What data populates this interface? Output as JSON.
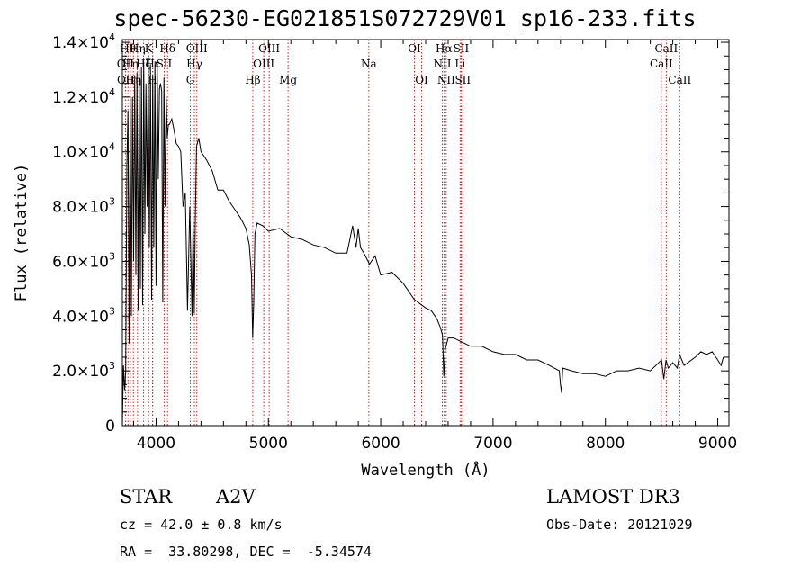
{
  "title": "spec-56230-EG021851S072729V01_sp16-233.fits",
  "info": {
    "class": "STAR",
    "subclass": "A2V",
    "survey": "LAMOST DR3",
    "cz": "cz = 42.0 ± 0.8 km/s",
    "obs_date": "Obs-Date: 20121029",
    "coords": "RA =  33.80298, DEC =  -5.34574"
  },
  "chart_data": {
    "type": "line",
    "title": "spec-56230-EG021851S072729V01_sp16-233.fits",
    "xlabel": "Wavelength (Å)",
    "ylabel": "Flux (relative)",
    "xlim": [
      3700,
      9100
    ],
    "ylim": [
      0,
      14100
    ],
    "xticks": [
      4000,
      5000,
      6000,
      7000,
      8000,
      9000
    ],
    "xtick_labels": [
      "4000",
      "5000",
      "6000",
      "7000",
      "8000",
      "9000"
    ],
    "yticks": [
      {
        "value": 0,
        "mant": "0",
        "exp": ""
      },
      {
        "value": 2000,
        "mant": "2.0×10",
        "exp": "3"
      },
      {
        "value": 4000,
        "mant": "4.0×10",
        "exp": "3"
      },
      {
        "value": 6000,
        "mant": "6.0×10",
        "exp": "3"
      },
      {
        "value": 8000,
        "mant": "8.0×10",
        "exp": "3"
      },
      {
        "value": 10000,
        "mant": "1.0×10",
        "exp": "4"
      },
      {
        "value": 12000,
        "mant": "1.2×10",
        "exp": "4"
      },
      {
        "value": 14000,
        "mant": "1.4×10",
        "exp": "4"
      }
    ],
    "series": [
      {
        "x": [
          3700,
          3710,
          3720,
          3730,
          3740,
          3750,
          3760,
          3770,
          3780,
          3790,
          3800,
          3810,
          3820,
          3830,
          3840,
          3850,
          3860,
          3870,
          3880,
          3890,
          3900,
          3910,
          3920,
          3930,
          3940,
          3950,
          3960,
          3970,
          3980,
          3990,
          4000,
          4010,
          4020,
          4030,
          4040,
          4050,
          4060,
          4070,
          4080,
          4090,
          4100,
          4110,
          4120,
          4140,
          4160,
          4180,
          4200,
          4220,
          4240,
          4260,
          4280,
          4300,
          4320,
          4330,
          4340,
          4350,
          4360,
          4380,
          4400,
          4450,
          4500,
          4550,
          4600,
          4650,
          4700,
          4750,
          4800,
          4830,
          4850,
          4860,
          4870,
          4880,
          4900,
          4950,
          5000,
          5100,
          5200,
          5300,
          5400,
          5500,
          5600,
          5700,
          5750,
          5780,
          5800,
          5820,
          5850,
          5900,
          5950,
          6000,
          6100,
          6200,
          6300,
          6400,
          6450,
          6500,
          6530,
          6550,
          6562,
          6575,
          6600,
          6650,
          6700,
          6800,
          6900,
          7000,
          7100,
          7200,
          7300,
          7400,
          7500,
          7590,
          7600,
          7610,
          7620,
          7700,
          7800,
          7900,
          8000,
          8100,
          8200,
          8300,
          8400,
          8500,
          8520,
          8540,
          8560,
          8600,
          8640,
          8660,
          8700,
          8800,
          8850,
          8900,
          8950,
          9000,
          9030,
          9050
        ],
        "y": [
          0,
          2200,
          1300,
          2000,
          9500,
          11500,
          3000,
          12000,
          4000,
          12000,
          6000,
          12800,
          5500,
          12900,
          4200,
          13000,
          5000,
          13100,
          4400,
          13300,
          7000,
          12500,
          8000,
          13500,
          6500,
          13200,
          4600,
          12800,
          6500,
          13300,
          5100,
          13300,
          9000,
          12300,
          12500,
          12200,
          4500,
          12700,
          8000,
          12000,
          10500,
          11000,
          11000,
          11200,
          10800,
          10300,
          10200,
          10000,
          8000,
          8500,
          4200,
          8000,
          4000,
          7600,
          4100,
          7600,
          10200,
          10500,
          10000,
          9700,
          9300,
          8600,
          8600,
          8200,
          7900,
          7600,
          7200,
          6600,
          5500,
          3200,
          4500,
          7000,
          7400,
          7300,
          7100,
          7200,
          6900,
          6800,
          6600,
          6500,
          6300,
          6300,
          7300,
          6500,
          7200,
          6500,
          6300,
          5900,
          6200,
          5500,
          5600,
          5200,
          4600,
          4300,
          4200,
          3900,
          3600,
          3300,
          1800,
          2800,
          3200,
          3200,
          3100,
          2900,
          2900,
          2700,
          2600,
          2600,
          2400,
          2400,
          2200,
          2000,
          1500,
          1200,
          2100,
          2000,
          1900,
          1900,
          1800,
          2000,
          2000,
          2100,
          2000,
          2400,
          1700,
          2400,
          2100,
          2300,
          2100,
          2600,
          2200,
          2500,
          2700,
          2600,
          2700,
          2400,
          2200,
          2500
        ]
      }
    ],
    "line_markers": [
      {
        "wl": 3727,
        "label": "OII",
        "row": 2
      },
      {
        "wl": 3729,
        "label": "OII",
        "row": 3
      },
      {
        "wl": 3750,
        "label": "Hθ",
        "row": 1
      },
      {
        "wl": 3771,
        "label": "Hη",
        "row": 2
      },
      {
        "wl": 3798,
        "label": "Hη",
        "row": 3
      },
      {
        "wl": 3835,
        "label": "Hη",
        "row": 1
      },
      {
        "wl": 3889,
        "label": "Hζ",
        "row": 2
      },
      {
        "wl": 3934,
        "label": "K",
        "row": 1
      },
      {
        "wl": 3969,
        "label": "H",
        "row": 3
      },
      {
        "wl": 3970,
        "label": "Hε",
        "row": 2
      },
      {
        "wl": 4072,
        "label": "SII",
        "row": 2
      },
      {
        "wl": 4102,
        "label": "Hδ",
        "row": 1
      },
      {
        "wl": 4305,
        "label": "G",
        "row": 3
      },
      {
        "wl": 4341,
        "label": "Hγ",
        "row": 2
      },
      {
        "wl": 4363,
        "label": "OIII",
        "row": 1
      },
      {
        "wl": 4861,
        "label": "Hβ",
        "row": 3
      },
      {
        "wl": 4959,
        "label": "OIII",
        "row": 2
      },
      {
        "wl": 5007,
        "label": "OIII",
        "row": 1
      },
      {
        "wl": 5175,
        "label": "Mg",
        "row": 3
      },
      {
        "wl": 5894,
        "label": "Na",
        "row": 2
      },
      {
        "wl": 6300,
        "label": "OI",
        "row": 1
      },
      {
        "wl": 6364,
        "label": "OI",
        "row": 3
      },
      {
        "wl": 6548,
        "label": "NII",
        "row": 2
      },
      {
        "wl": 6563,
        "label": "Hα",
        "row": 1
      },
      {
        "wl": 6583,
        "label": "NII",
        "row": 3
      },
      {
        "wl": 6707,
        "label": "Li",
        "row": 2
      },
      {
        "wl": 6716,
        "label": "SII",
        "row": 1
      },
      {
        "wl": 6731,
        "label": "SII",
        "row": 3
      },
      {
        "wl": 8498,
        "label": "CaII",
        "row": 2
      },
      {
        "wl": 8542,
        "label": "CaII",
        "row": 1
      },
      {
        "wl": 8662,
        "label": "CaII",
        "row": 3
      }
    ],
    "colors": {
      "spectrum": "#000000",
      "markers": "#cc2222",
      "axes": "#000000"
    }
  }
}
